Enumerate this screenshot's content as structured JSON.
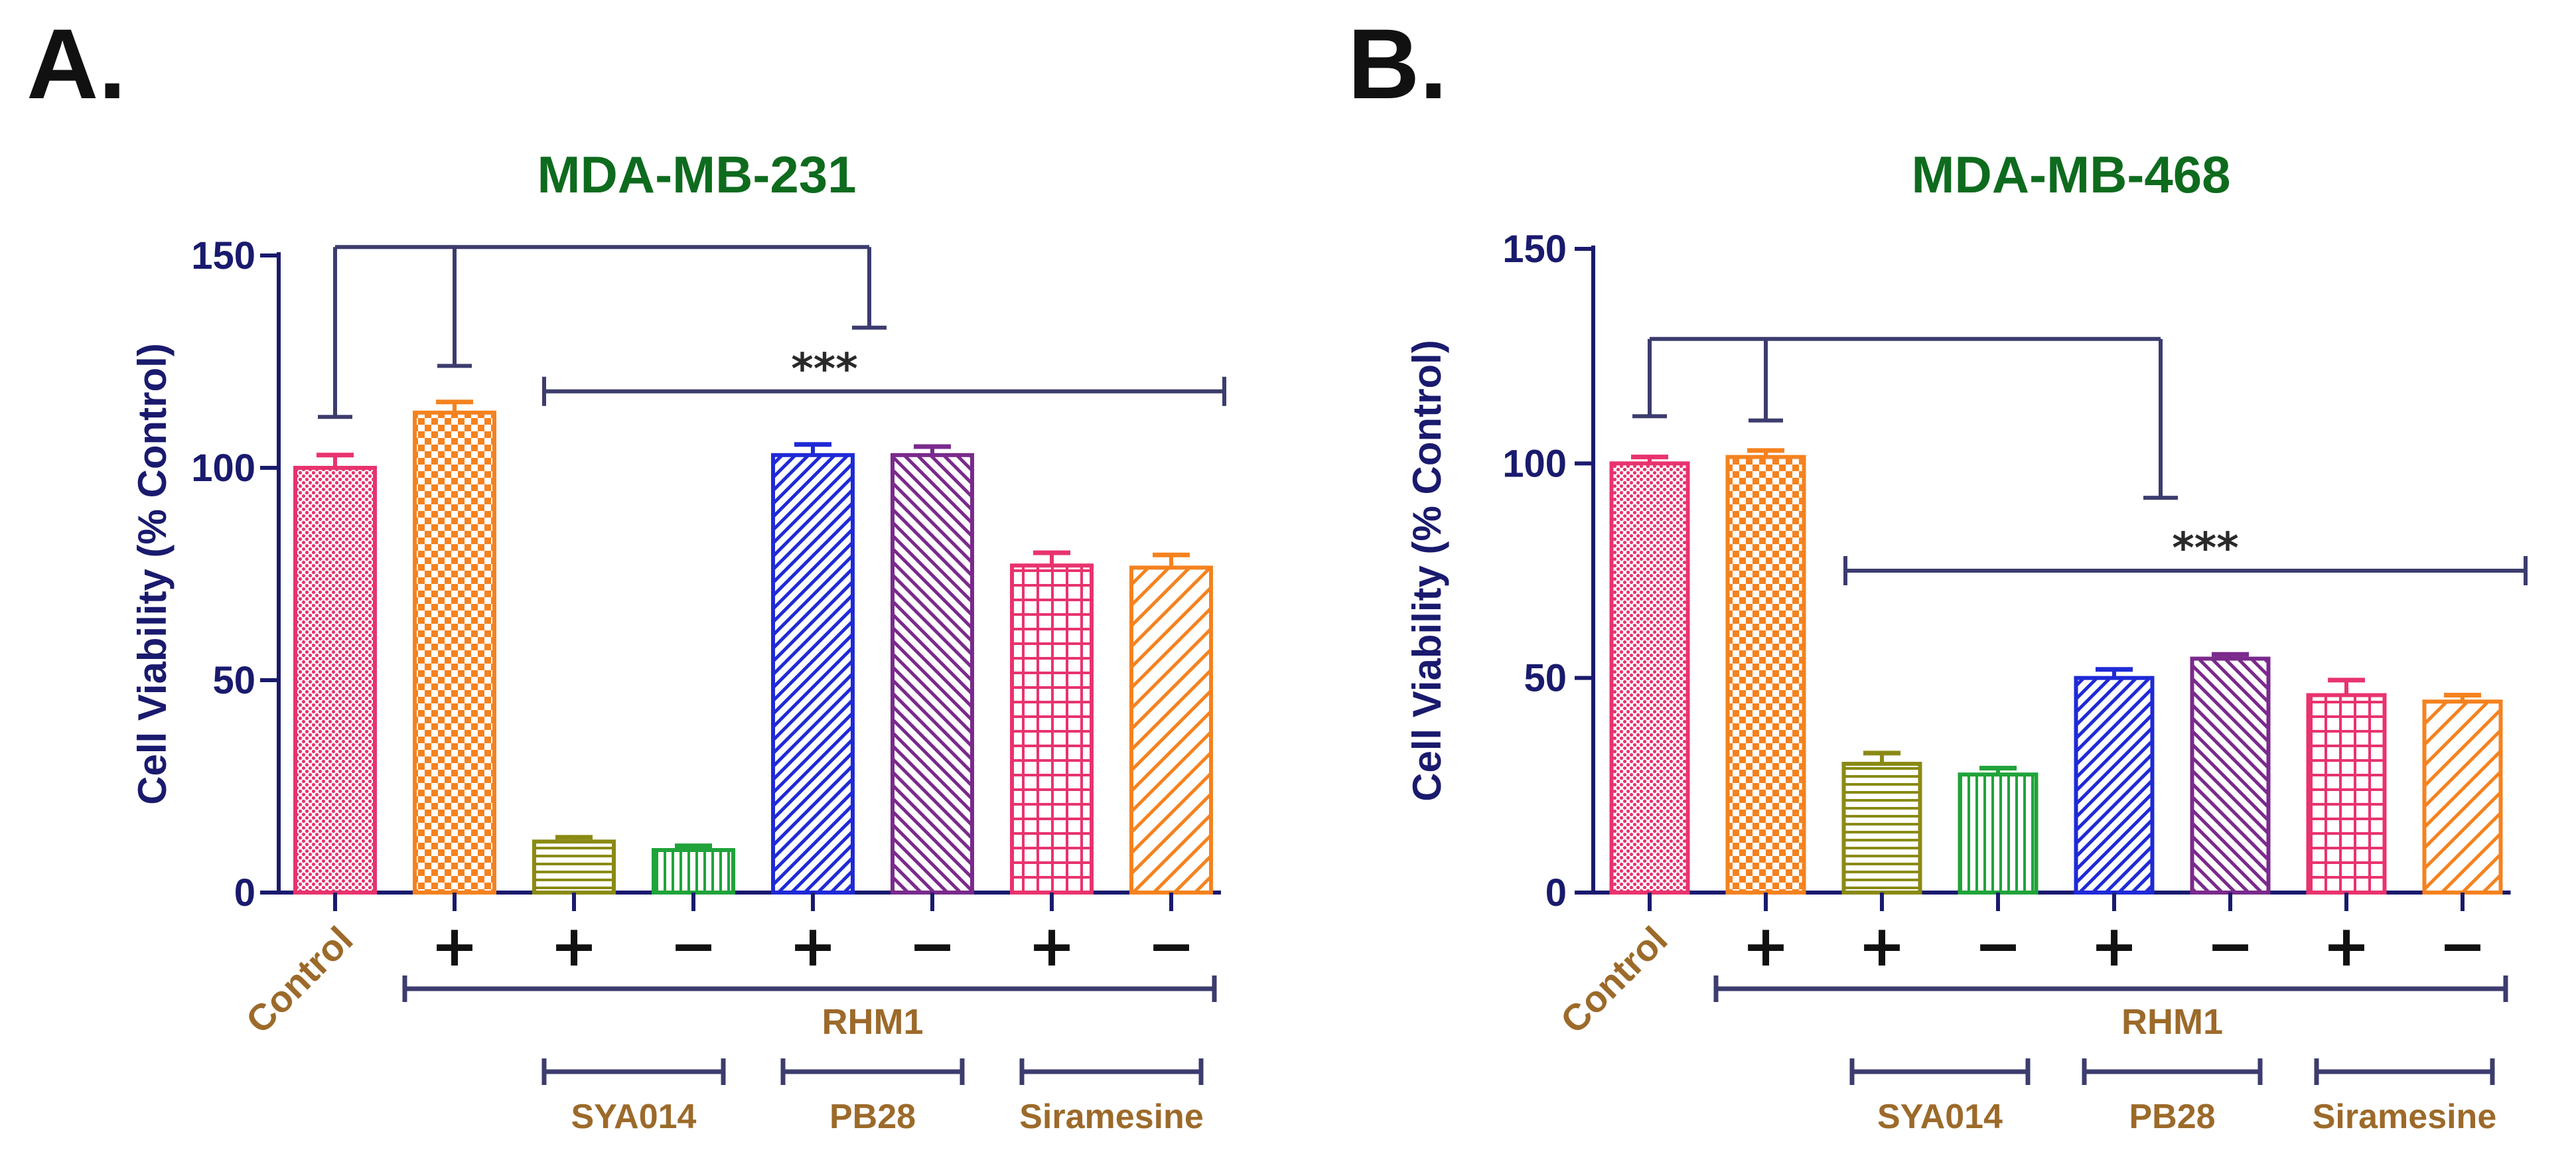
{
  "chart_data": [
    {
      "panel_letter": "A.",
      "type": "bar",
      "title": "MDA-MB-231",
      "ylabel": "Cell Viability (% Control)",
      "ylim": [
        0,
        150
      ],
      "yticks": [
        "0",
        "50",
        "100",
        "150"
      ],
      "categories": [
        "Control",
        "RHM1 + SYA014",
        "SYA014 alone",
        "RHM1 + PB28",
        "PB28 alone",
        "RHM1 + Siramesine",
        "Siramesine alone",
        "RHM1 alone"
      ],
      "bars": [
        {
          "label": "Control",
          "rhm1": "",
          "value": 100,
          "error": 3,
          "color": "#e8336e",
          "pattern": "dots"
        },
        {
          "label": "RHM1",
          "rhm1": "+",
          "value": 113,
          "error": 2.5,
          "color": "#f5821f",
          "pattern": "checker"
        },
        {
          "label": "SYA014",
          "rhm1": "+",
          "value": 12,
          "error": 1,
          "color": "#8a8a14",
          "pattern": "hlines"
        },
        {
          "label": "SYA014",
          "rhm1": "−",
          "value": 10,
          "error": 1,
          "color": "#20a33a",
          "pattern": "vlines"
        },
        {
          "label": "PB28",
          "rhm1": "+",
          "value": 103,
          "error": 2.5,
          "color": "#1f2ad6",
          "pattern": "diag-right"
        },
        {
          "label": "PB28",
          "rhm1": "−",
          "value": 103,
          "error": 2,
          "color": "#7a2a8c",
          "pattern": "diag-left"
        },
        {
          "label": "Siramesine",
          "rhm1": "+",
          "value": 77,
          "error": 3,
          "color": "#e8336e",
          "pattern": "grid"
        },
        {
          "label": "Siramesine",
          "rhm1": "−",
          "value": 76.5,
          "error": 3,
          "color": "#f5821f",
          "pattern": "diag-right-wide"
        }
      ],
      "x_labels": {
        "control": "Control",
        "group": "RHM1",
        "sub_groups": [
          "SYA014",
          "PB28",
          "Siramesine"
        ]
      },
      "annotations": {
        "significance": "***",
        "bracket_top_y": 152,
        "bracket_control_tip": 112,
        "bracket_rhm1_tip": 124,
        "bracket_drop_tip": 133,
        "sig_line_y": 118
      }
    },
    {
      "panel_letter": "B.",
      "type": "bar",
      "title": "MDA-MB-468",
      "ylabel": "Cell Viability (% Control)",
      "ylim": [
        0,
        150
      ],
      "yticks": [
        "0",
        "50",
        "100",
        "150"
      ],
      "categories": [
        "Control",
        "RHM1 + SYA014",
        "SYA014 alone",
        "RHM1 + PB28",
        "PB28 alone",
        "RHM1 + Siramesine",
        "Siramesine alone",
        "RHM1 alone"
      ],
      "bars": [
        {
          "label": "Control",
          "rhm1": "",
          "value": 100,
          "error": 1.5,
          "color": "#e8336e",
          "pattern": "dots"
        },
        {
          "label": "RHM1",
          "rhm1": "+",
          "value": 101.5,
          "error": 1.5,
          "color": "#f5821f",
          "pattern": "checker"
        },
        {
          "label": "SYA014",
          "rhm1": "+",
          "value": 30,
          "error": 2.5,
          "color": "#8a8a14",
          "pattern": "hlines"
        },
        {
          "label": "SYA014",
          "rhm1": "−",
          "value": 27.5,
          "error": 1.5,
          "color": "#20a33a",
          "pattern": "vlines"
        },
        {
          "label": "PB28",
          "rhm1": "+",
          "value": 50,
          "error": 2,
          "color": "#1f2ad6",
          "pattern": "diag-right"
        },
        {
          "label": "PB28",
          "rhm1": "−",
          "value": 54.5,
          "error": 1,
          "color": "#7a2a8c",
          "pattern": "diag-left"
        },
        {
          "label": "Siramesine",
          "rhm1": "+",
          "value": 46,
          "error": 3.5,
          "color": "#e8336e",
          "pattern": "grid"
        },
        {
          "label": "Siramesine",
          "rhm1": "−",
          "value": 44.5,
          "error": 1.5,
          "color": "#f5821f",
          "pattern": "diag-right-wide"
        }
      ],
      "x_labels": {
        "control": "Control",
        "group": "RHM1",
        "sub_groups": [
          "SYA014",
          "PB28",
          "Siramesine"
        ]
      },
      "annotations": {
        "significance": "***",
        "bracket_top_y": 129,
        "bracket_control_tip": 111,
        "bracket_rhm1_tip": 110,
        "bracket_drop_tip": 92,
        "sig_line_y": 75
      }
    }
  ],
  "colors": {
    "axis": "#1a1a6e",
    "title": "#0e6b1e",
    "xlabel": "#9c6a2a",
    "bracket": "#3c3c6e",
    "letter": "#111111"
  }
}
